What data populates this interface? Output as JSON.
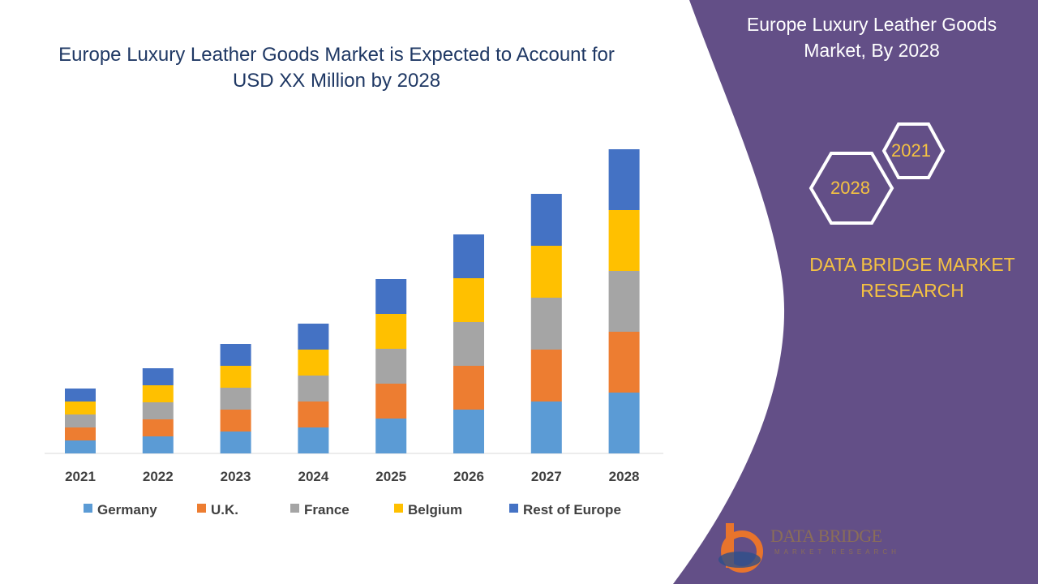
{
  "header": {
    "title": "Europe Luxury Leather Goods Market is Expected to Account for USD XX Million by 2028"
  },
  "side_panel": {
    "title": "Europe Luxury Leather Goods Market, By 2028",
    "hex_start": "2021",
    "hex_end": "2028",
    "brand": "DATA BRIDGE MARKET RESEARCH",
    "panel_color": "#634f87"
  },
  "logo": {
    "name": "DATA BRIDGE",
    "sub": "MARKET RESEARCH"
  },
  "chart_data": {
    "type": "bar",
    "stacked": true,
    "title": "",
    "xlabel": "",
    "ylabel": "",
    "categories": [
      "2021",
      "2022",
      "2023",
      "2024",
      "2025",
      "2026",
      "2027",
      "2028"
    ],
    "series": [
      {
        "name": "Germany",
        "color": "#5b9bd5",
        "values": [
          16,
          21,
          27,
          32,
          43,
          54,
          64,
          75
        ]
      },
      {
        "name": "U.K.",
        "color": "#ed7d31",
        "values": [
          16,
          21,
          27,
          32,
          43,
          54,
          64,
          75
        ]
      },
      {
        "name": "France",
        "color": "#a5a5a5",
        "values": [
          16,
          21,
          27,
          32,
          43,
          54,
          64,
          75
        ]
      },
      {
        "name": "Belgium",
        "color": "#ffc000",
        "values": [
          16,
          21,
          27,
          32,
          43,
          54,
          64,
          75
        ]
      },
      {
        "name": "Rest of Europe",
        "color": "#4472c4",
        "values": [
          16,
          21,
          27,
          32,
          43,
          54,
          64,
          75
        ]
      }
    ],
    "ylim": [
      0,
      375
    ],
    "grid": false,
    "y_axis_shown": false,
    "legend": "bottom"
  }
}
